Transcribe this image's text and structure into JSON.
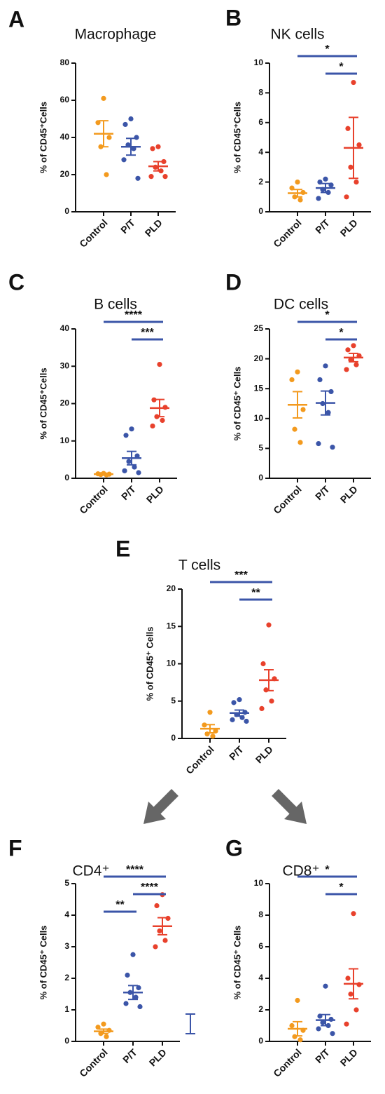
{
  "chart_data": [
    {
      "type": "dot",
      "panel": "A",
      "title": "Macrophage",
      "ylabel": "% of CD45⁺Cells",
      "categories": [
        "Control",
        "P/T",
        "PLD"
      ],
      "groups": [
        {
          "color": "#f39a1e",
          "points": [
            61,
            48,
            40,
            35,
            20
          ],
          "mean": 42,
          "error": 7
        },
        {
          "color": "#3b55a8",
          "points": [
            50,
            47,
            40,
            36,
            34,
            28,
            18
          ],
          "mean": 35,
          "error": 4.5
        },
        {
          "color": "#e8412c",
          "points": [
            35,
            34,
            27,
            24,
            22,
            19,
            19
          ],
          "mean": 24.5,
          "error": 2.5
        }
      ],
      "ylim": [
        0,
        80
      ],
      "yticks": [
        0,
        20,
        40,
        60,
        80
      ],
      "comparisons": []
    },
    {
      "type": "dot",
      "panel": "B",
      "title": "NK cells",
      "ylabel": "% of CD45⁺Cells",
      "categories": [
        "Control",
        "P/T",
        "PLD"
      ],
      "groups": [
        {
          "color": "#f39a1e",
          "points": [
            2.0,
            1.6,
            1.3,
            1.0,
            0.8
          ],
          "mean": 1.25,
          "error": 0.25
        },
        {
          "color": "#3b55a8",
          "points": [
            2.2,
            2.0,
            1.8,
            1.5,
            1.3,
            0.9
          ],
          "mean": 1.6,
          "error": 0.3
        },
        {
          "color": "#e8412c",
          "points": [
            8.7,
            5.6,
            4.5,
            3.0,
            2.0,
            1.0
          ],
          "mean": 4.3,
          "error": 2.05
        }
      ],
      "ylim": [
        0,
        10
      ],
      "yticks": [
        0,
        2,
        4,
        6,
        8,
        10
      ],
      "comparisons": [
        {
          "label": "*",
          "from": 0,
          "to": 2
        },
        {
          "label": "*",
          "from": 1,
          "to": 2
        }
      ]
    },
    {
      "type": "dot",
      "panel": "C",
      "title": "B cells",
      "ylabel": "% of CD45⁺Cells",
      "categories": [
        "Control",
        "P/T",
        "PLD"
      ],
      "groups": [
        {
          "color": "#f39a1e",
          "points": [
            1.3,
            1.2,
            1.1,
            1.0,
            0.9
          ],
          "mean": 1.1,
          "error": 0.1
        },
        {
          "color": "#3b55a8",
          "points": [
            13.2,
            11.5,
            6,
            4.5,
            3,
            2,
            1.5
          ],
          "mean": 5.4,
          "error": 1.8
        },
        {
          "color": "#e8412c",
          "points": [
            30.5,
            21,
            19,
            16.5,
            15.5,
            14
          ],
          "mean": 18.8,
          "error": 2.3
        }
      ],
      "ylim": [
        0,
        40
      ],
      "yticks": [
        0,
        10,
        20,
        30,
        40
      ],
      "comparisons": [
        {
          "label": "****",
          "from": 0,
          "to": 2
        },
        {
          "label": "***",
          "from": 1,
          "to": 2
        }
      ]
    },
    {
      "type": "dot",
      "panel": "D",
      "title": "DC cells",
      "ylabel": "% of CD45⁺ Cells",
      "categories": [
        "Control",
        "P/T",
        "PLD"
      ],
      "groups": [
        {
          "color": "#f39a1e",
          "points": [
            17.8,
            16.5,
            11.5,
            8.2,
            6
          ],
          "mean": 12.3,
          "error": 2.2
        },
        {
          "color": "#3b55a8",
          "points": [
            18.8,
            16.5,
            14.5,
            12.5,
            11,
            5.8,
            5.2
          ],
          "mean": 12.6,
          "error": 2
        },
        {
          "color": "#e8412c",
          "points": [
            22.2,
            21.5,
            20.5,
            19.8,
            19,
            18.2
          ],
          "mean": 20.2,
          "error": 0.7
        }
      ],
      "ylim": [
        0,
        25
      ],
      "yticks": [
        0,
        5,
        10,
        15,
        20,
        25
      ],
      "comparisons": [
        {
          "label": "*",
          "from": 0,
          "to": 2
        },
        {
          "label": "*",
          "from": 1,
          "to": 2
        }
      ]
    },
    {
      "type": "dot",
      "panel": "E",
      "title": "T cells",
      "ylabel": "% of CD45⁺ Cells",
      "categories": [
        "Control",
        "P/T",
        "PLD"
      ],
      "groups": [
        {
          "color": "#f39a1e",
          "points": [
            3.5,
            1.8,
            1.0,
            0.6,
            0.3
          ],
          "mean": 1.3,
          "error": 0.55
        },
        {
          "color": "#3b55a8",
          "points": [
            5.2,
            4.8,
            3.5,
            3.2,
            2.8,
            2.5,
            2.3
          ],
          "mean": 3.4,
          "error": 0.4
        },
        {
          "color": "#e8412c",
          "points": [
            15.2,
            10,
            8,
            6.5,
            5,
            4
          ],
          "mean": 7.8,
          "error": 1.4
        }
      ],
      "ylim": [
        0,
        20
      ],
      "yticks": [
        0,
        5,
        10,
        15,
        20
      ],
      "comparisons": [
        {
          "label": "***",
          "from": 0,
          "to": 2
        },
        {
          "label": "**",
          "from": 1,
          "to": 2
        }
      ]
    },
    {
      "type": "dot",
      "panel": "F",
      "title": "CD4⁺",
      "ylabel": "% of CD45⁺ Cells",
      "categories": [
        "Control",
        "P/T",
        "PLD"
      ],
      "groups": [
        {
          "color": "#f39a1e",
          "points": [
            0.55,
            0.45,
            0.35,
            0.25,
            0.15
          ],
          "mean": 0.32,
          "error": 0.07
        },
        {
          "color": "#3b55a8",
          "points": [
            2.75,
            2.1,
            1.7,
            1.55,
            1.4,
            1.2,
            1.1
          ],
          "mean": 1.55,
          "error": 0.22
        },
        {
          "color": "#e8412c",
          "points": [
            4.65,
            4.3,
            3.9,
            3.5,
            3.2,
            3.0
          ],
          "mean": 3.65,
          "error": 0.27
        }
      ],
      "ylim": [
        0,
        5
      ],
      "yticks": [
        0,
        1,
        2,
        3,
        4,
        5
      ],
      "comparisons": [
        {
          "label": "****",
          "from": 0,
          "to": 2
        },
        {
          "label": "****",
          "from": 1,
          "to": 2
        },
        {
          "label": "**",
          "from": 0,
          "to": 1
        }
      ]
    },
    {
      "type": "dot",
      "panel": "G",
      "title": "CD8⁺",
      "ylabel": "% of CD45⁺ Cells",
      "categories": [
        "Control",
        "P/T",
        "PLD"
      ],
      "groups": [
        {
          "color": "#f39a1e",
          "points": [
            2.6,
            1.0,
            0.7,
            0.3,
            0.1
          ],
          "mean": 0.8,
          "error": 0.45
        },
        {
          "color": "#3b55a8",
          "points": [
            3.5,
            1.6,
            1.4,
            1.2,
            1.0,
            0.8,
            0.5
          ],
          "mean": 1.35,
          "error": 0.35
        },
        {
          "color": "#e8412c",
          "points": [
            8.1,
            4.0,
            3.6,
            3.0,
            2.0,
            1.1
          ],
          "mean": 3.65,
          "error": 0.95
        }
      ],
      "ylim": [
        0,
        10
      ],
      "yticks": [
        0,
        2,
        4,
        6,
        8,
        10
      ],
      "comparisons": [
        {
          "label": "*",
          "from": 0,
          "to": 2
        },
        {
          "label": "*",
          "from": 1,
          "to": 2
        }
      ]
    }
  ]
}
